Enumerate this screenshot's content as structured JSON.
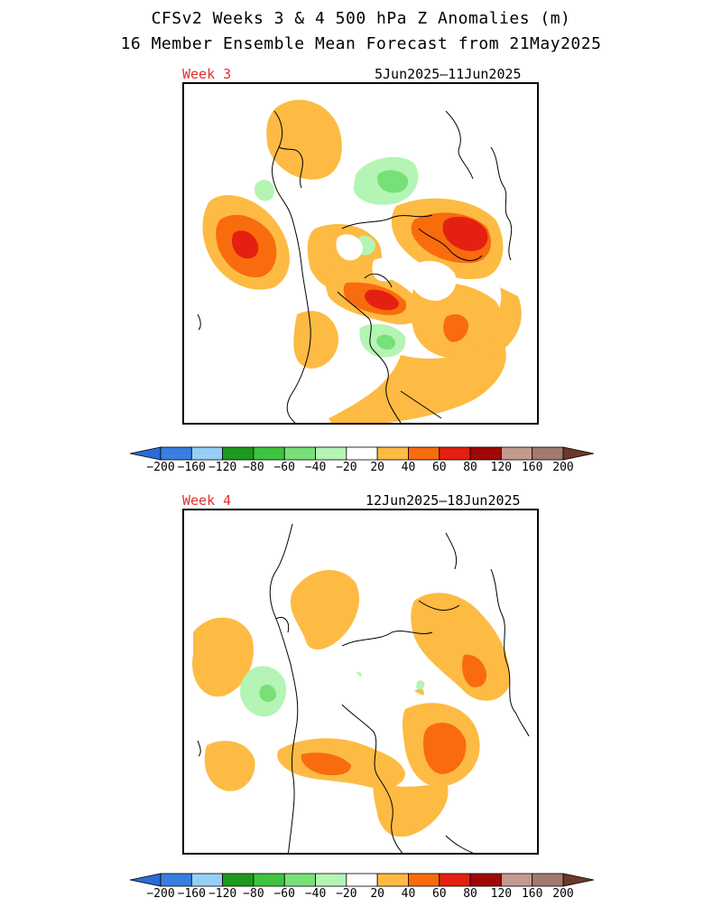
{
  "title_line1": "CFSv2 Weeks 3 & 4 500 hPa Z Anomalies (m)",
  "title_line2": "16 Member Ensemble Mean Forecast from 21May2025",
  "panels": [
    {
      "label": "Week 3",
      "dates": "5Jun2025–11Jun2025"
    },
    {
      "label": "Week 4",
      "dates": "12Jun2025–18Jun2025"
    }
  ],
  "colorbar": {
    "labels": [
      "−200",
      "−160",
      "−120",
      "−80",
      "−60",
      "−40",
      "−20",
      "20",
      "40",
      "60",
      "80",
      "120",
      "160",
      "200"
    ],
    "colors": [
      "#3a7fe0",
      "#96cff5",
      "#1d9a1d",
      "#3fc43f",
      "#78e078",
      "#b4f4b4",
      "#ffffff",
      "#fdbb43",
      "#f86c0e",
      "#e42010",
      "#a00808",
      "#c39a8e",
      "#a07a70"
    ],
    "left_arrow_color": "#2a6bd6",
    "right_arrow_color": "#6a3a28"
  },
  "legend_colors": {
    "pos20": "#fdbb43",
    "pos40": "#f86c0e",
    "pos60": "#e42010",
    "neg20": "#b4f4b4",
    "neg40": "#78e078",
    "coast": "#000000"
  }
}
